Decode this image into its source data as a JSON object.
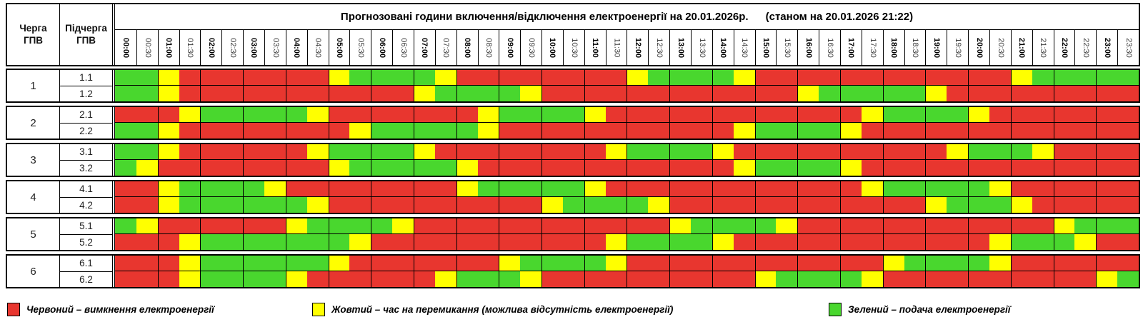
{
  "chart_data": {
    "type": "heatmap",
    "title": "Прогнозовані години включення/відключення електроенергії на 20.01.2026р.",
    "status_note": "(станом на 20.01.2026 21:22)",
    "queue_header_l1": "Черга",
    "queue_header_l2": "ГПВ",
    "subqueue_header_l1": "Підчерга",
    "subqueue_header_l2": "ГПВ",
    "x_categories": [
      "00:00",
      "00:30",
      "01:00",
      "01:30",
      "02:00",
      "02:30",
      "03:00",
      "03:30",
      "04:00",
      "04:30",
      "05:00",
      "05:30",
      "06:00",
      "06:30",
      "07:00",
      "07:30",
      "08:00",
      "08:30",
      "09:00",
      "09:30",
      "10:00",
      "10:30",
      "11:00",
      "11:30",
      "12:00",
      "12:30",
      "13:00",
      "13:30",
      "14:00",
      "14:30",
      "15:00",
      "15:30",
      "16:00",
      "16:30",
      "17:00",
      "17:30",
      "18:00",
      "18:30",
      "19:00",
      "19:30",
      "20:00",
      "20:30",
      "21:00",
      "21:30",
      "22:00",
      "22:30",
      "23:00",
      "23:30"
    ],
    "value_key": {
      "R": "red = outage",
      "Y": "yellow = switching",
      "G": "green = power on"
    },
    "colors": {
      "R": "#e8362f",
      "Y": "#ffff00",
      "G": "#49d72e"
    },
    "groups": [
      {
        "queue": "1",
        "rows": [
          {
            "label": "1.1",
            "values": "GGYRRRRRRRYGGGGYRRRRRRRRYGGGGYRRRRRRRRRRRRYGGGGG"
          },
          {
            "label": "1.2",
            "values": "GGYRRRRRRRRRRRYGGGGYRRRRRRRRRRRRYGGGGGYRRRRRRRRR"
          }
        ]
      },
      {
        "queue": "2",
        "rows": [
          {
            "label": "2.1",
            "values": "RRRYGGGGGYRRRRRRRYGGGGYRRRRRRRRRRRRYGGGGYRRRRRRR"
          },
          {
            "label": "2.2",
            "values": "GGYRRRRRRRRYGGGGGYRRRRRRRRRRRYGGGGYRRRRRRRRRRRRR"
          }
        ]
      },
      {
        "queue": "3",
        "rows": [
          {
            "label": "3.1",
            "values": "GGYRRRRRRYGGGGYRRRRRRRRYGGGGYRRRRRRRRRRYGGGYRRRR"
          },
          {
            "label": "3.2",
            "values": "GYRRRRRRRRYGGGGGYRRRRRRRRRRRRYGGGGYRRRRRRRRRRRRR"
          }
        ]
      },
      {
        "queue": "4",
        "rows": [
          {
            "label": "4.1",
            "values": "RRYGGGGYRRRRRRRRYGGGGGYRRRRRRRRRRRRYGGGGGYRRRRRR"
          },
          {
            "label": "4.2",
            "values": "RRYGGGGGGYRRRRRRRRRRYGGGGYRRRRRRRRRRRRYGGGYRRRRR"
          }
        ]
      },
      {
        "queue": "5",
        "rows": [
          {
            "label": "5.1",
            "values": "GYRRRRRRYGGGGYRRRRRRRRRRRRYGGGGYRRRRRRRRRRRRYGGG"
          },
          {
            "label": "5.2",
            "values": "RRRYGGGGGGGYRRRRRRRRRRRYGGGGYRRRRRRRRRRRRYGGGYRR"
          }
        ]
      },
      {
        "queue": "6",
        "rows": [
          {
            "label": "6.1",
            "values": "RRRYGGGGGGYRRRRRRRYGGGGYRRRRRRRRRRRRYGGGGYRRRRRR"
          },
          {
            "label": "6.2",
            "values": "RRRYGGGGYRRRRRRYGGGYRRRRRRRRRRYGGGGYRRRRRRRRRRYG"
          }
        ]
      }
    ],
    "legend": [
      {
        "key": "R",
        "label": "Червоний – вимкнення електроенергії"
      },
      {
        "key": "Y",
        "label": "Жовтий – час на перемикання (можлива відсутність електроенергії)"
      },
      {
        "key": "G",
        "label": "Зелений – подача електроенергії"
      }
    ]
  }
}
